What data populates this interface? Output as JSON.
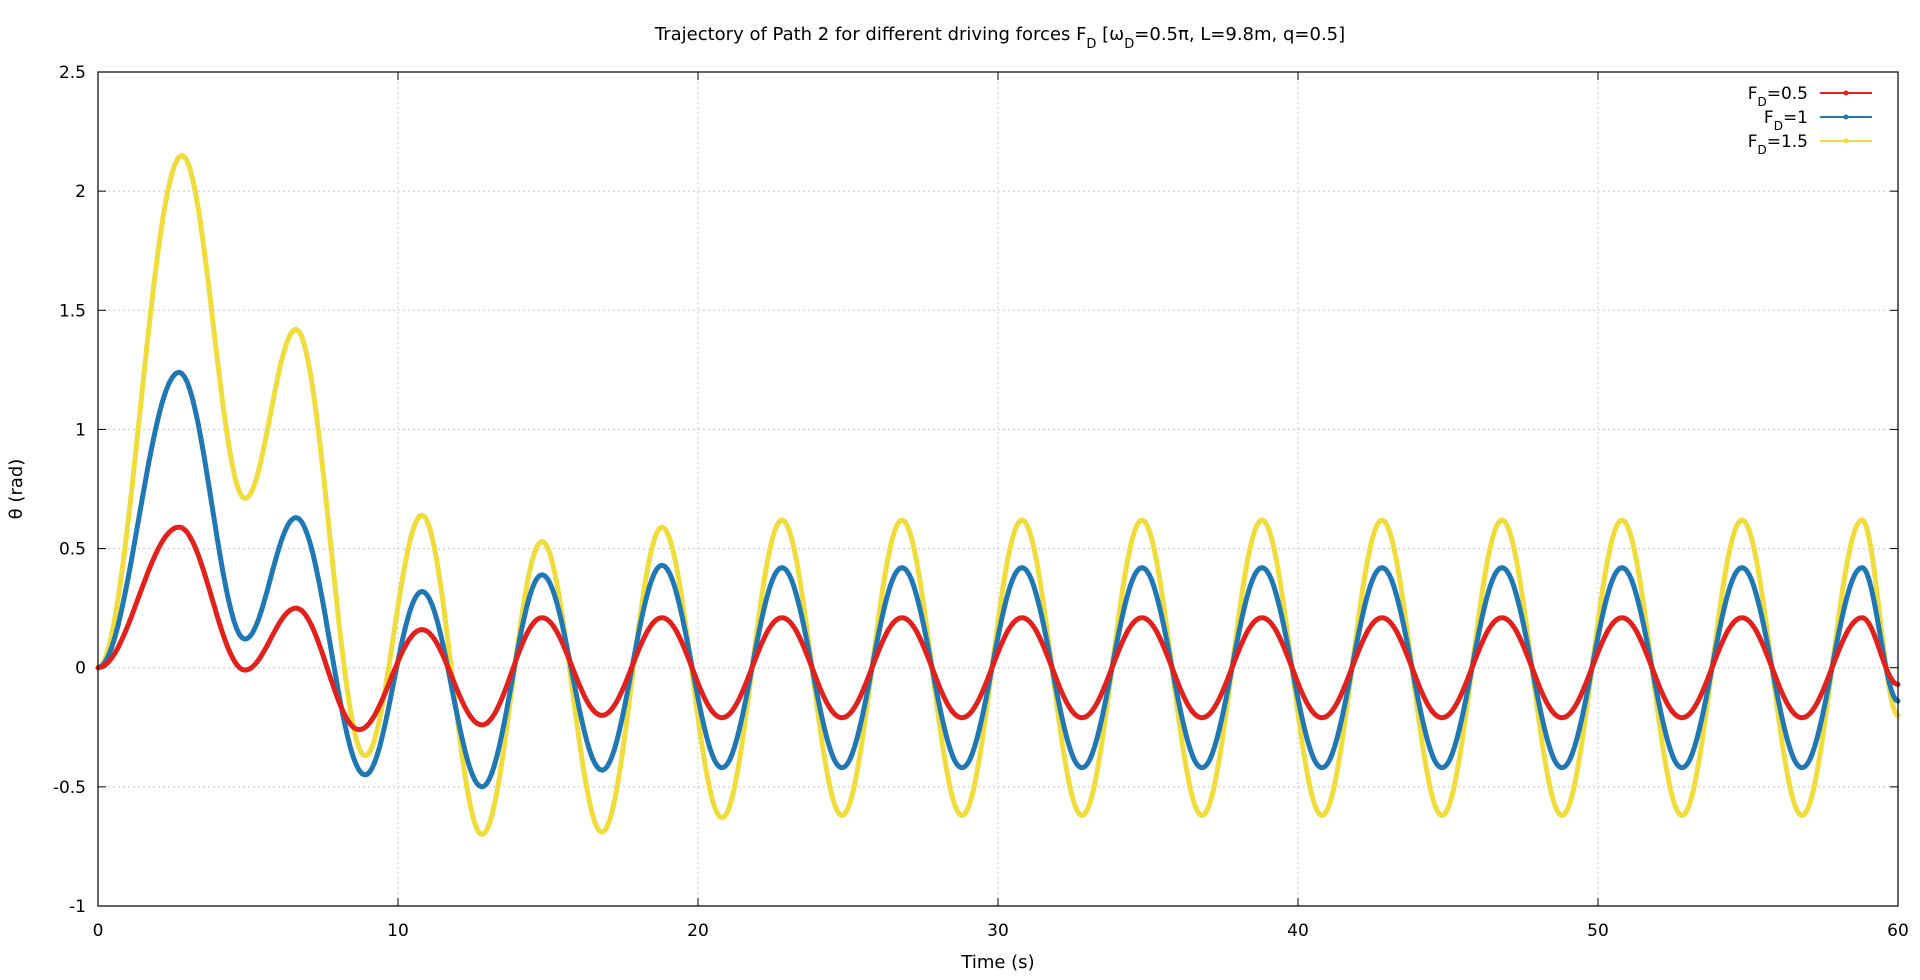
{
  "chart_data": {
    "type": "line",
    "title": "Trajectory of Path 2 for different driving forces F",
    "title_sub": "D",
    "title_bracket_open": " [ω",
    "title_bracket_sub": "D",
    "title_bracket_rest": "=0.5π, L=9.8m, q=0.5]",
    "xlabel": "Time (s)",
    "ylabel": "θ (rad)",
    "xlim": [
      0,
      60
    ],
    "ylim": [
      -1,
      2.5
    ],
    "x_ticks": [
      0,
      10,
      20,
      30,
      40,
      50,
      60
    ],
    "y_ticks": [
      -1,
      -0.5,
      0,
      0.5,
      1,
      1.5,
      2,
      2.5
    ],
    "x_tick_labels": [
      "0",
      "10",
      "20",
      "30",
      "40",
      "50",
      "60"
    ],
    "y_tick_labels": [
      "-1",
      "-0.5",
      "0",
      "0.5",
      "1",
      "1.5",
      "2",
      "2.5"
    ],
    "grid": true,
    "legend_position": "top-right",
    "series": [
      {
        "name_main": "F",
        "name_sub": "D",
        "name_rest": "=0.5",
        "color": "#e3211c",
        "x": [
          0,
          2.7,
          4.9,
          6.6,
          8.7,
          10.8,
          12.8,
          14.8,
          16.8,
          18.8,
          20.8,
          22.8,
          24.8,
          26.8,
          28.8,
          30.8,
          32.8,
          34.8,
          36.8,
          38.8,
          40.8,
          42.8,
          44.8,
          46.8,
          48.8,
          50.8,
          52.8,
          54.8,
          56.8,
          58.8,
          60
        ],
        "y": [
          0,
          0.59,
          -0.01,
          0.25,
          -0.26,
          0.16,
          -0.24,
          0.21,
          -0.2,
          0.21,
          -0.21,
          0.21,
          -0.21,
          0.21,
          -0.21,
          0.21,
          -0.21,
          0.21,
          -0.21,
          0.21,
          -0.21,
          0.21,
          -0.21,
          0.21,
          -0.21,
          0.21,
          -0.21,
          0.21,
          -0.21,
          0.21,
          -0.07
        ]
      },
      {
        "name_main": "F",
        "name_sub": "D",
        "name_rest": "=1",
        "color": "#1f78b4",
        "x": [
          0,
          2.7,
          4.9,
          6.6,
          8.9,
          10.8,
          12.8,
          14.8,
          16.8,
          18.8,
          20.8,
          22.8,
          24.8,
          26.8,
          28.8,
          30.8,
          32.8,
          34.8,
          36.8,
          38.8,
          40.8,
          42.8,
          44.8,
          46.8,
          48.8,
          50.8,
          52.8,
          54.8,
          56.8,
          58.8,
          60
        ],
        "y": [
          0,
          1.24,
          0.12,
          0.63,
          -0.45,
          0.32,
          -0.5,
          0.39,
          -0.43,
          0.43,
          -0.42,
          0.42,
          -0.42,
          0.42,
          -0.42,
          0.42,
          -0.42,
          0.42,
          -0.42,
          0.42,
          -0.42,
          0.42,
          -0.42,
          0.42,
          -0.42,
          0.42,
          -0.42,
          0.42,
          -0.42,
          0.42,
          -0.14
        ]
      },
      {
        "name_main": "F",
        "name_sub": "D",
        "name_rest": "=1.5",
        "color": "#f0dc3a",
        "x": [
          0,
          2.8,
          4.9,
          6.6,
          8.9,
          10.8,
          12.8,
          14.8,
          16.8,
          18.8,
          20.8,
          22.8,
          24.8,
          26.8,
          28.8,
          30.8,
          32.8,
          34.8,
          36.8,
          38.8,
          40.8,
          42.8,
          44.8,
          46.8,
          48.8,
          50.8,
          52.8,
          54.8,
          56.8,
          58.8,
          60
        ],
        "y": [
          0,
          2.15,
          0.71,
          1.42,
          -0.37,
          0.64,
          -0.7,
          0.53,
          -0.69,
          0.59,
          -0.63,
          0.62,
          -0.62,
          0.62,
          -0.62,
          0.62,
          -0.62,
          0.62,
          -0.62,
          0.62,
          -0.62,
          0.62,
          -0.62,
          0.62,
          -0.62,
          0.62,
          -0.62,
          0.62,
          -0.62,
          0.62,
          -0.2
        ]
      }
    ]
  }
}
